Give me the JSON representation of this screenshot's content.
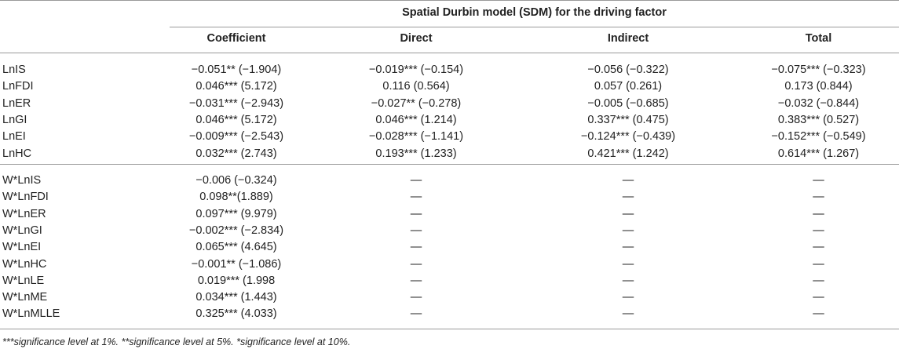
{
  "table": {
    "spanner": "Spatial Durbin model (SDM) for the driving factor",
    "columns": [
      "Coefficient",
      "Direct",
      "Indirect",
      "Total"
    ],
    "rows_main": [
      {
        "label": "LnIS",
        "coef": "−0.051** (−1.904)",
        "direct": "−0.019*** (−0.154)",
        "indirect": "−0.056 (−0.322)",
        "total": "−0.075*** (−0.323)"
      },
      {
        "label": "LnFDI",
        "coef": "0.046*** (5.172)",
        "direct": "0.116 (0.564)",
        "indirect": "0.057 (0.261)",
        "total": "0.173 (0.844)"
      },
      {
        "label": "LnER",
        "coef": "−0.031*** (−2.943)",
        "direct": "−0.027** (−0.278)",
        "indirect": "−0.005 (−0.685)",
        "total": "−0.032 (−0.844)"
      },
      {
        "label": "LnGI",
        "coef": "0.046*** (5.172)",
        "direct": "0.046*** (1.214)",
        "indirect": "0.337*** (0.475)",
        "total": "0.383*** (0.527)"
      },
      {
        "label": "LnEI",
        "coef": "−0.009*** (−2.543)",
        "direct": "−0.028*** (−1.141)",
        "indirect": "−0.124*** (−0.439)",
        "total": "−0.152*** (−0.549)"
      },
      {
        "label": "LnHC",
        "coef": "0.032*** (2.743)",
        "direct": "0.193*** (1.233)",
        "indirect": "0.421*** (1.242)",
        "total": "0.614*** (1.267)"
      }
    ],
    "rows_w": [
      {
        "label": "W*LnIS",
        "coef": "−0.006 (−0.324)",
        "direct": "—",
        "indirect": "—",
        "total": "—"
      },
      {
        "label": "W*LnFDI",
        "coef": "0.098**(1.889)",
        "direct": "—",
        "indirect": "—",
        "total": "—"
      },
      {
        "label": "W*LnER",
        "coef": "0.097*** (9.979)",
        "direct": "—",
        "indirect": "—",
        "total": "—"
      },
      {
        "label": "W*LnGI",
        "coef": "−0.002*** (−2.834)",
        "direct": "—",
        "indirect": "—",
        "total": "—"
      },
      {
        "label": "W*LnEI",
        "coef": "0.065*** (4.645)",
        "direct": "—",
        "indirect": "—",
        "total": "—"
      },
      {
        "label": "W*LnHC",
        "coef": "−0.001** (−1.086)",
        "direct": "—",
        "indirect": "—",
        "total": "—"
      },
      {
        "label": "W*LnLE",
        "coef": "0.019*** (1.998",
        "direct": "—",
        "indirect": "—",
        "total": "—"
      },
      {
        "label": "W*LnME",
        "coef": "0.034*** (1.443)",
        "direct": "—",
        "indirect": "—",
        "total": "—"
      },
      {
        "label": "W*LnMLLE",
        "coef": "0.325*** (4.033)",
        "direct": "—",
        "indirect": "—",
        "total": "—"
      }
    ]
  },
  "footnote": "***significance level at 1%. **significance level at 5%. *significance level at 10%."
}
